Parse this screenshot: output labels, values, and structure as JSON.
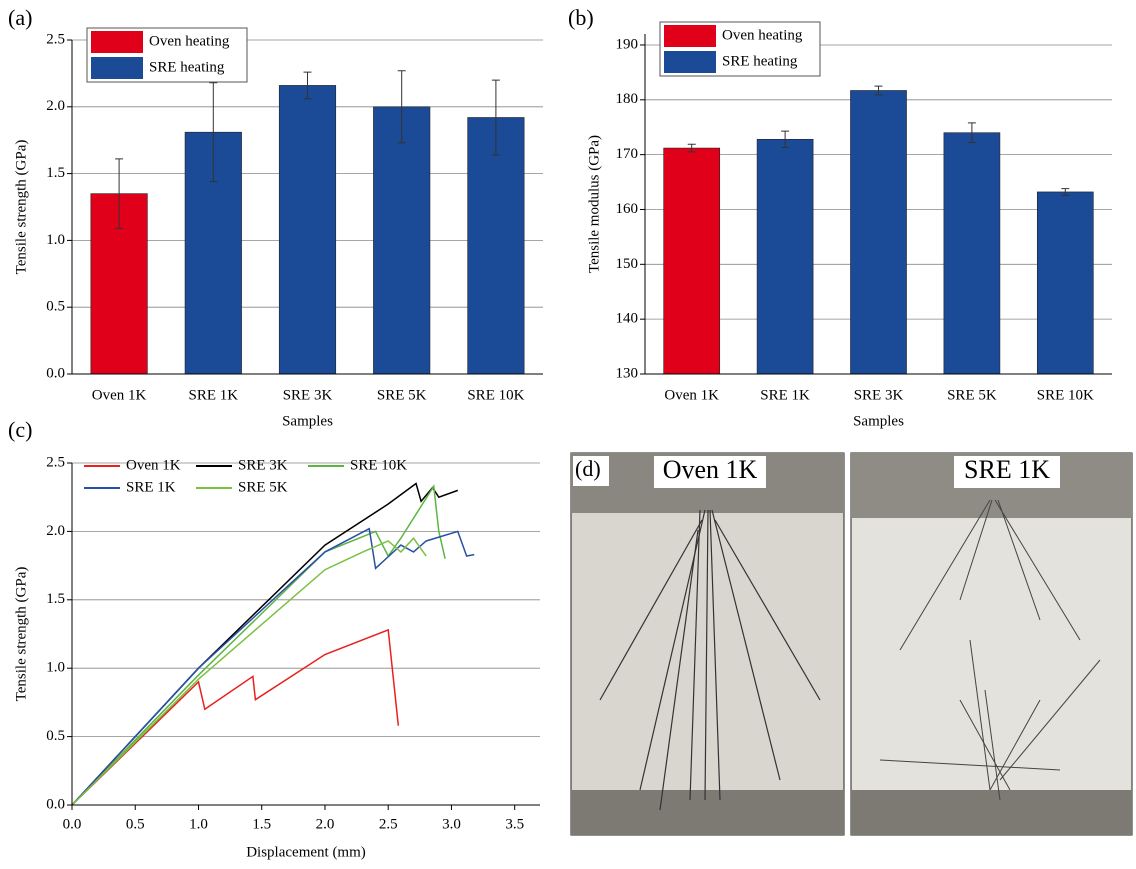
{
  "chart_data": [
    {
      "type": "bar",
      "panel_label": "(a)",
      "x_label": "Samples",
      "y_label": "Tensile strength (GPa)",
      "categories": [
        "Oven 1K",
        "SRE 1K",
        "SRE 3K",
        "SRE 5K",
        "SRE 10K"
      ],
      "series": [
        {
          "name": "Oven heating",
          "color": "#e1001a",
          "values": [
            1.35,
            null,
            null,
            null,
            null
          ],
          "errors": [
            0.26,
            null,
            null,
            null,
            null
          ]
        },
        {
          "name": "SRE heating",
          "color": "#1b4a97",
          "values": [
            null,
            1.81,
            2.16,
            2.0,
            1.92
          ],
          "errors": [
            null,
            0.37,
            0.1,
            0.27,
            0.28
          ]
        }
      ],
      "ylim": [
        0,
        2.5
      ],
      "yticks": [
        {
          "value": 0,
          "label": "0.0"
        },
        {
          "value": 0.5,
          "label": "0.5"
        },
        {
          "value": 1,
          "label": "1.0"
        },
        {
          "value": 1.5,
          "label": "1.5"
        },
        {
          "value": 2,
          "label": "2.0"
        },
        {
          "value": 2.5,
          "label": "2.5"
        }
      ],
      "grid": true,
      "legend": "upper left"
    },
    {
      "type": "bar",
      "panel_label": "(b)",
      "x_label": "Samples",
      "y_label": "Tensile modulus (GPa)",
      "categories": [
        "Oven 1K",
        "SRE 1K",
        "SRE 3K",
        "SRE 5K",
        "SRE 10K"
      ],
      "series": [
        {
          "name": "Oven heating",
          "color": "#e1001a",
          "values": [
            171.2,
            null,
            null,
            null,
            null
          ],
          "errors": [
            0.7,
            null,
            null,
            null,
            null
          ]
        },
        {
          "name": "SRE heating",
          "color": "#1b4a97",
          "values": [
            null,
            172.8,
            181.7,
            174.0,
            163.2
          ],
          "errors": [
            null,
            1.5,
            0.8,
            1.8,
            0.6
          ]
        }
      ],
      "ylim": [
        130,
        192
      ],
      "yticks": [
        130,
        140,
        150,
        160,
        170,
        180,
        190
      ],
      "grid": true,
      "legend": "upper left"
    },
    {
      "type": "line",
      "panel_label": "(c)",
      "x_label": "Displacement (mm)",
      "y_label": "Tensile strength (GPa)",
      "series": [
        {
          "name": "Oven 1K",
          "color": "#e8201e",
          "x": [
            0,
            1.0,
            1.05,
            1.43,
            1.45,
            2.0,
            2.5,
            2.58
          ],
          "values": [
            0,
            0.9,
            0.7,
            0.94,
            0.77,
            1.1,
            1.28,
            0.58
          ]
        },
        {
          "name": "SRE 3K",
          "color": "#000000",
          "x": [
            0,
            1.0,
            2.0,
            2.5,
            2.72,
            2.76,
            2.85,
            2.9,
            3.05
          ],
          "values": [
            0,
            1.0,
            1.9,
            2.2,
            2.35,
            2.22,
            2.32,
            2.25,
            2.3
          ]
        },
        {
          "name": "SRE 10K",
          "color": "#5cb53f",
          "x": [
            0,
            1.0,
            2.0,
            2.4,
            2.5,
            2.6,
            2.86,
            2.9,
            2.95
          ],
          "values": [
            0,
            0.95,
            1.85,
            2.0,
            1.82,
            1.95,
            2.33,
            2.0,
            1.8
          ]
        },
        {
          "name": "SRE 1K",
          "color": "#2850a8",
          "x": [
            0,
            1.0,
            2.0,
            2.35,
            2.4,
            2.6,
            2.7,
            2.8,
            3.05,
            3.12,
            3.18
          ],
          "values": [
            0,
            1.0,
            1.85,
            2.02,
            1.73,
            1.9,
            1.85,
            1.93,
            2.0,
            1.82,
            1.83
          ]
        },
        {
          "name": "SRE 5K",
          "color": "#7ac142",
          "x": [
            0,
            1.0,
            2.0,
            2.3,
            2.5,
            2.6,
            2.7,
            2.8
          ],
          "values": [
            0,
            0.92,
            1.72,
            1.85,
            1.93,
            1.85,
            1.95,
            1.82
          ]
        }
      ],
      "xlim": [
        0,
        3.7
      ],
      "xticks": [
        {
          "value": 0,
          "label": "0.0"
        },
        {
          "value": 0.5,
          "label": "0.5"
        },
        {
          "value": 1,
          "label": "1.0"
        },
        {
          "value": 1.5,
          "label": "1.5"
        },
        {
          "value": 2,
          "label": "2.0"
        },
        {
          "value": 2.5,
          "label": "2.5"
        },
        {
          "value": 3,
          "label": "3.0"
        },
        {
          "value": 3.5,
          "label": "3.5"
        }
      ],
      "ylim": [
        0,
        2.5
      ],
      "yticks": [
        {
          "value": 0,
          "label": "0.0"
        },
        {
          "value": 0.5,
          "label": "0.5"
        },
        {
          "value": 1,
          "label": "1.0"
        },
        {
          "value": 1.5,
          "label": "1.5"
        },
        {
          "value": 2,
          "label": "2.0"
        },
        {
          "value": 2.5,
          "label": "2.5"
        }
      ],
      "grid": true,
      "legend": "upper left"
    }
  ],
  "photo_panel": {
    "label": "(d)",
    "captions": [
      "Oven 1K",
      "SRE 1K"
    ]
  }
}
